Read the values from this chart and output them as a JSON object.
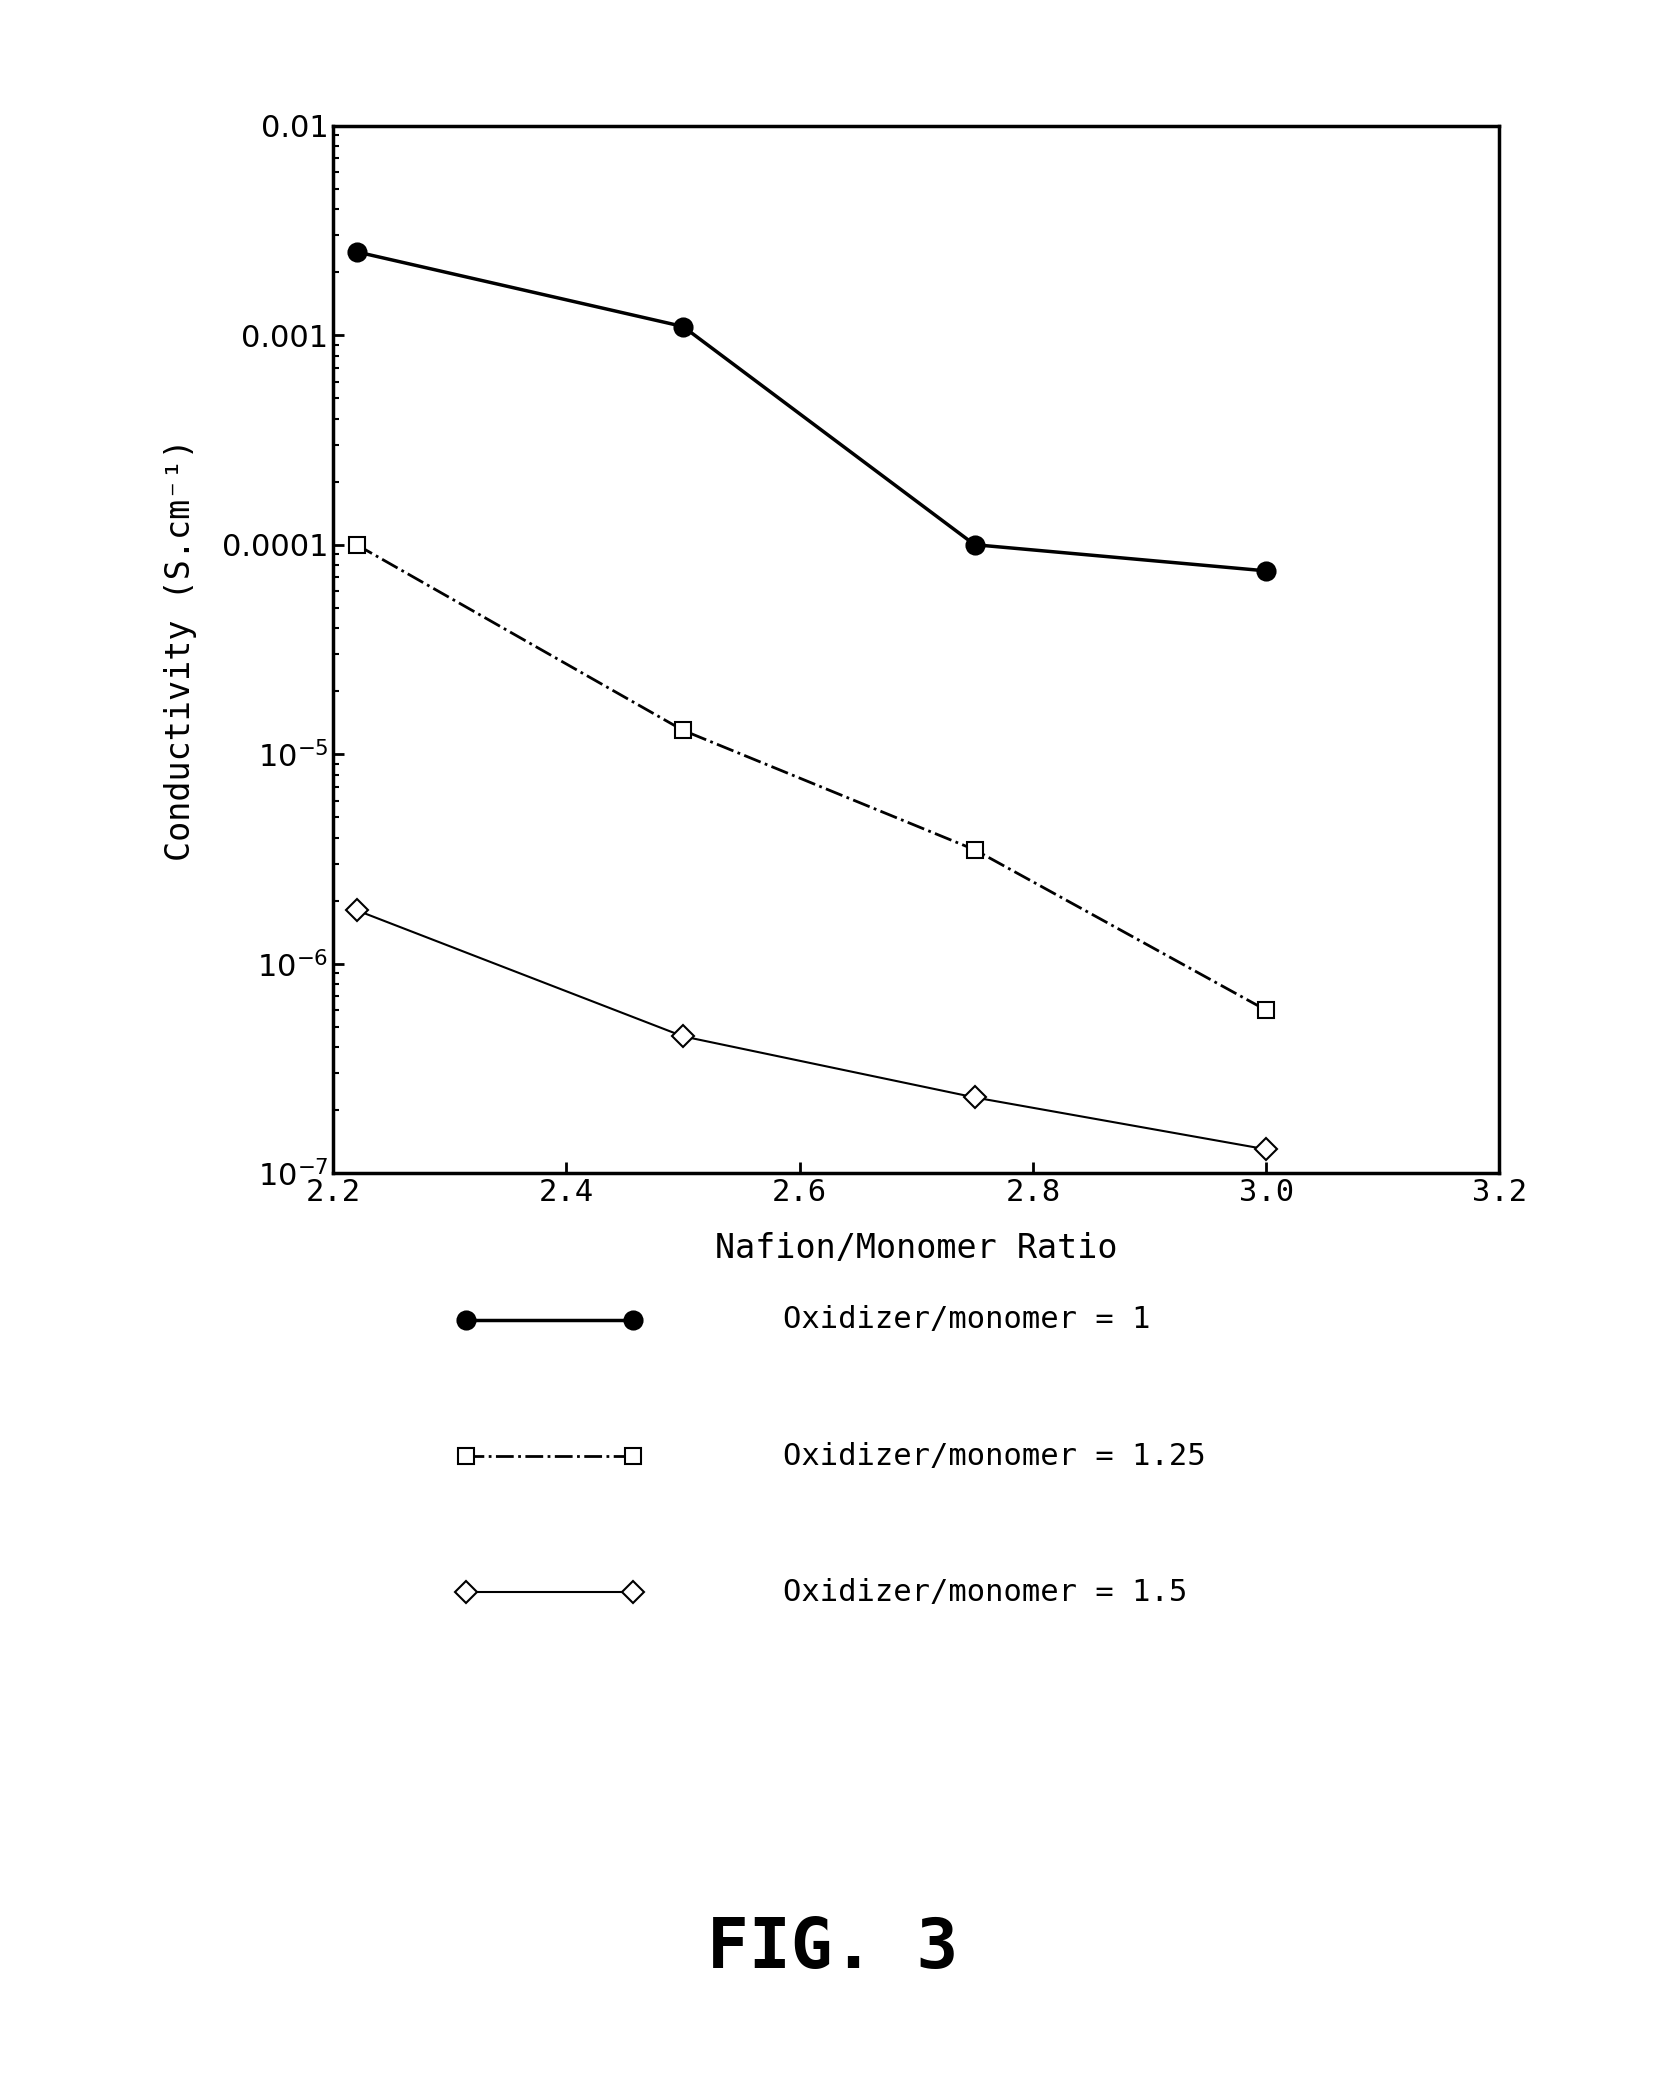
{
  "series1": {
    "x": [
      2.22,
      2.5,
      2.75,
      3.0
    ],
    "y": [
      0.0025,
      0.0011,
      0.0001,
      7.5e-05
    ],
    "label": "Oxidizer/monomer = 1",
    "linestyle": "-",
    "marker": "o",
    "color": "black",
    "linewidth": 2.5,
    "markersize": 13,
    "markerfacecolor": "black"
  },
  "series2": {
    "x": [
      2.22,
      2.5,
      2.75,
      3.0
    ],
    "y": [
      0.0001,
      1.3e-05,
      3.5e-06,
      6e-07
    ],
    "label": "Oxidizer/monomer = 1.25",
    "linestyle": "-.",
    "marker": "s",
    "color": "black",
    "linewidth": 2.0,
    "markersize": 11,
    "markerfacecolor": "white"
  },
  "series3": {
    "x": [
      2.22,
      2.5,
      2.75,
      3.0
    ],
    "y": [
      1.8e-06,
      4.5e-07,
      2.3e-07,
      1.3e-07
    ],
    "label": "Oxidizer/monomer = 1.5",
    "linestyle": "-",
    "marker": "D",
    "color": "black",
    "linewidth": 1.5,
    "markersize": 11,
    "markerfacecolor": "white"
  },
  "xlabel": "Nafion/Monomer Ratio",
  "ylabel": "Conductivity (S.cm⁻¹)",
  "xlim": [
    2.2,
    3.2
  ],
  "ylim_low": 1e-07,
  "ylim_high": 0.01,
  "xticks": [
    2.2,
    2.4,
    2.6,
    2.8,
    3.0,
    3.2
  ],
  "xtick_labels": [
    "2.2",
    "2.4",
    "2.6",
    "2.8",
    "3.0",
    "3.2"
  ],
  "title": "FIG. 3",
  "background_color": "white",
  "fig_width": 16.66,
  "fig_height": 20.95,
  "dpi": 100
}
